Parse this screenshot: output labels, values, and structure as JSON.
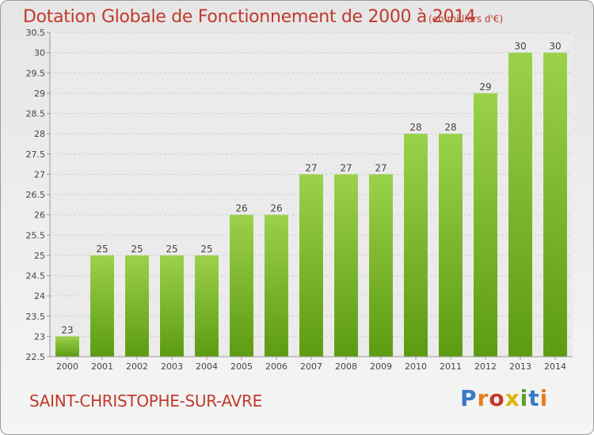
{
  "header": {
    "title": "Dotation Globale de Fonctionnement de 2000 à 2014",
    "subtitle": "(en milliers d'€)"
  },
  "footer": {
    "commune": "SAINT-CHRISTOPHE-SUR-AVRE",
    "logo": "Proxiti"
  },
  "colors": {
    "title": "#c0392b",
    "bar_top": "#9bd14b",
    "bar_bottom": "#5c9b12",
    "logo_letters": [
      "#3a78c7",
      "#e67e22",
      "#c0392b",
      "#e0b400",
      "#5aa02c",
      "#3a78c7",
      "#e67e22"
    ]
  },
  "chart_data": {
    "type": "bar",
    "title": "Dotation Globale de Fonctionnement de 2000 à 2014",
    "subtitle": "(en milliers d'€)",
    "categories": [
      "2000",
      "2001",
      "2002",
      "2003",
      "2004",
      "2005",
      "2006",
      "2007",
      "2008",
      "2009",
      "2010",
      "2011",
      "2012",
      "2013",
      "2014"
    ],
    "values": [
      23,
      25,
      25,
      25,
      25,
      26,
      26,
      27,
      27,
      27,
      28,
      28,
      29,
      30,
      30
    ],
    "data_labels": [
      "23",
      "25",
      "25",
      "25",
      "25",
      "26",
      "26",
      "27",
      "27",
      "27",
      "28",
      "28",
      "29",
      "30",
      "30"
    ],
    "ylim": [
      22.5,
      30.5
    ],
    "yticks": [
      "22.5",
      "23",
      "23.5",
      "24",
      "24.5",
      "25",
      "25.5",
      "26",
      "26.5",
      "27",
      "27.5",
      "28",
      "28.5",
      "29",
      "29.5",
      "30",
      "30.5"
    ],
    "grid": true,
    "legend": "none"
  }
}
